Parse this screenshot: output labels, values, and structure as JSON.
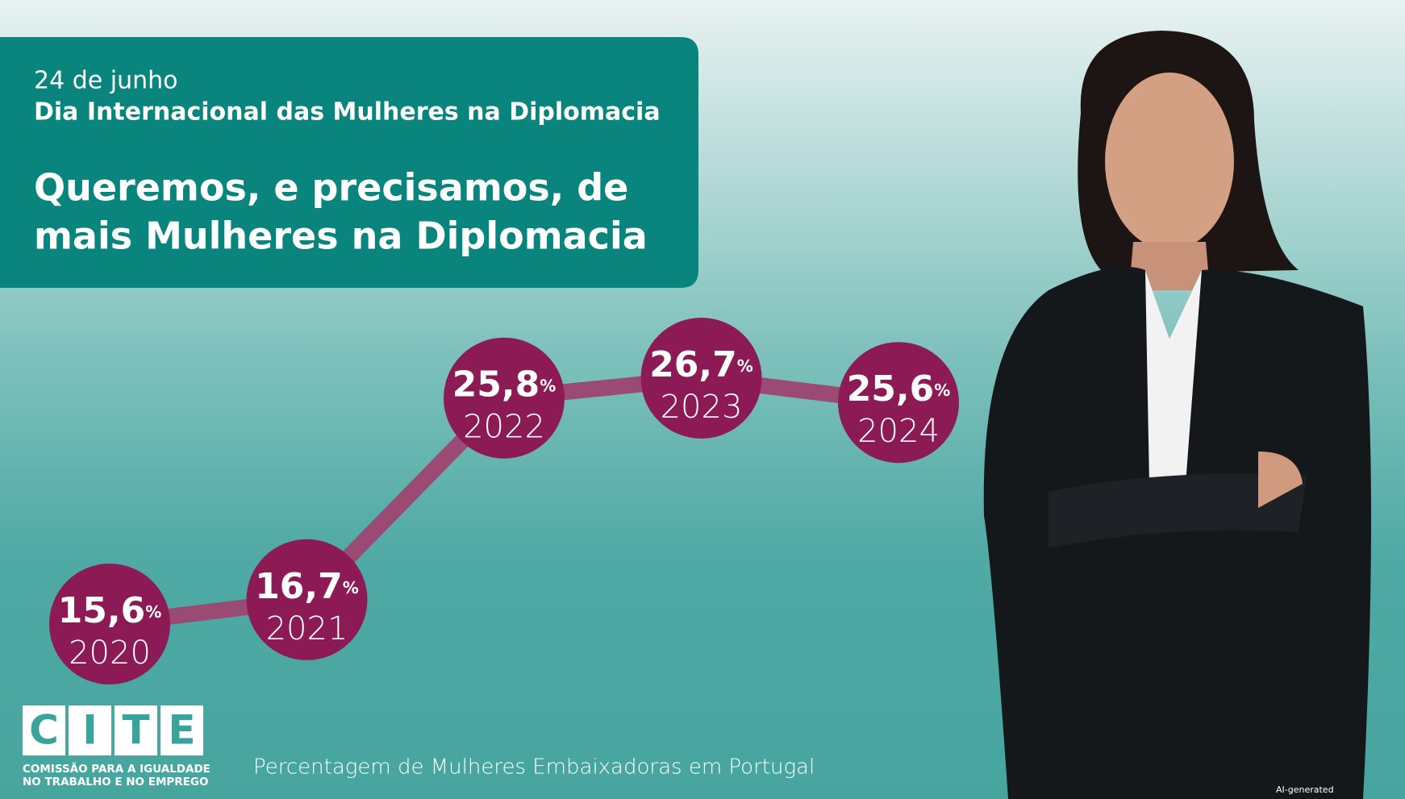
{
  "header": {
    "date": "24 de junho",
    "event": "Dia Internacional das Mulheres na Diplomacia",
    "headline": [
      "Queremos, e precisamos, de",
      "mais Mulheres na Diplomacia"
    ]
  },
  "chart_data": {
    "type": "line",
    "title": "Percentagem de Mulheres Embaixadoras em Portugal",
    "categories": [
      "2020",
      "2021",
      "2022",
      "2023",
      "2024"
    ],
    "values": [
      15.6,
      16.7,
      25.8,
      26.7,
      25.6
    ],
    "value_labels": [
      "15,6",
      "16,7",
      "25,8",
      "26,7",
      "25,6"
    ],
    "unit": "%",
    "color": "#8c1a54",
    "line_color": "#9b4a74"
  },
  "logo": {
    "letters": [
      "C",
      "I",
      "T",
      "E"
    ],
    "lines": [
      "COMISSÃO PARA A IGUALDADE",
      "NO TRABALHO E NO EMPREGO"
    ]
  },
  "note": "AI-generated"
}
